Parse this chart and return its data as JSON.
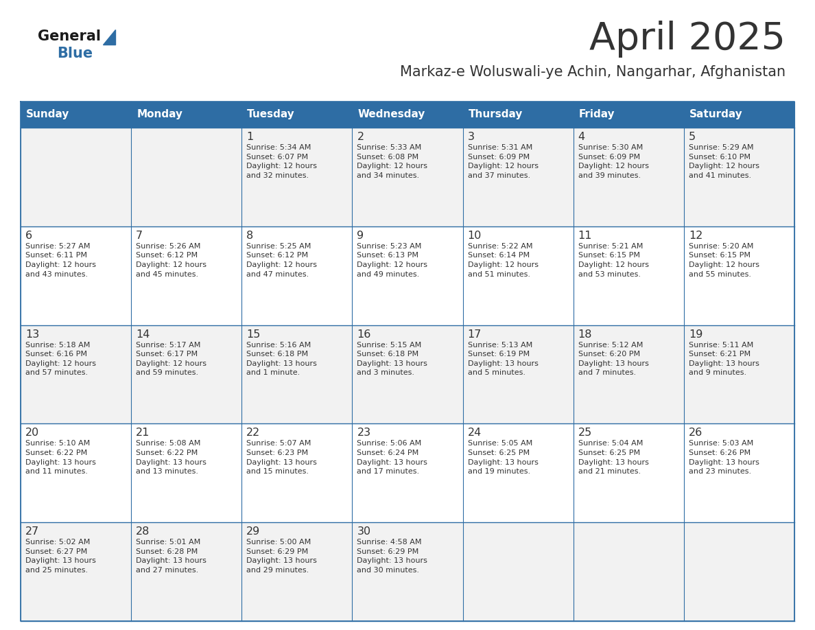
{
  "title": "April 2025",
  "subtitle": "Markaz-e Woluswali-ye Achin, Nangarhar, Afghanistan",
  "header_bg_color": "#2E6DA4",
  "header_text_color": "#FFFFFF",
  "cell_bg_even": "#F2F2F2",
  "cell_bg_odd": "#FFFFFF",
  "text_color": "#333333",
  "grid_color": "#2E6DA4",
  "days_of_week": [
    "Sunday",
    "Monday",
    "Tuesday",
    "Wednesday",
    "Thursday",
    "Friday",
    "Saturday"
  ],
  "weeks": [
    [
      {
        "day": "",
        "info": ""
      },
      {
        "day": "",
        "info": ""
      },
      {
        "day": "1",
        "info": "Sunrise: 5:34 AM\nSunset: 6:07 PM\nDaylight: 12 hours\nand 32 minutes."
      },
      {
        "day": "2",
        "info": "Sunrise: 5:33 AM\nSunset: 6:08 PM\nDaylight: 12 hours\nand 34 minutes."
      },
      {
        "day": "3",
        "info": "Sunrise: 5:31 AM\nSunset: 6:09 PM\nDaylight: 12 hours\nand 37 minutes."
      },
      {
        "day": "4",
        "info": "Sunrise: 5:30 AM\nSunset: 6:09 PM\nDaylight: 12 hours\nand 39 minutes."
      },
      {
        "day": "5",
        "info": "Sunrise: 5:29 AM\nSunset: 6:10 PM\nDaylight: 12 hours\nand 41 minutes."
      }
    ],
    [
      {
        "day": "6",
        "info": "Sunrise: 5:27 AM\nSunset: 6:11 PM\nDaylight: 12 hours\nand 43 minutes."
      },
      {
        "day": "7",
        "info": "Sunrise: 5:26 AM\nSunset: 6:12 PM\nDaylight: 12 hours\nand 45 minutes."
      },
      {
        "day": "8",
        "info": "Sunrise: 5:25 AM\nSunset: 6:12 PM\nDaylight: 12 hours\nand 47 minutes."
      },
      {
        "day": "9",
        "info": "Sunrise: 5:23 AM\nSunset: 6:13 PM\nDaylight: 12 hours\nand 49 minutes."
      },
      {
        "day": "10",
        "info": "Sunrise: 5:22 AM\nSunset: 6:14 PM\nDaylight: 12 hours\nand 51 minutes."
      },
      {
        "day": "11",
        "info": "Sunrise: 5:21 AM\nSunset: 6:15 PM\nDaylight: 12 hours\nand 53 minutes."
      },
      {
        "day": "12",
        "info": "Sunrise: 5:20 AM\nSunset: 6:15 PM\nDaylight: 12 hours\nand 55 minutes."
      }
    ],
    [
      {
        "day": "13",
        "info": "Sunrise: 5:18 AM\nSunset: 6:16 PM\nDaylight: 12 hours\nand 57 minutes."
      },
      {
        "day": "14",
        "info": "Sunrise: 5:17 AM\nSunset: 6:17 PM\nDaylight: 12 hours\nand 59 minutes."
      },
      {
        "day": "15",
        "info": "Sunrise: 5:16 AM\nSunset: 6:18 PM\nDaylight: 13 hours\nand 1 minute."
      },
      {
        "day": "16",
        "info": "Sunrise: 5:15 AM\nSunset: 6:18 PM\nDaylight: 13 hours\nand 3 minutes."
      },
      {
        "day": "17",
        "info": "Sunrise: 5:13 AM\nSunset: 6:19 PM\nDaylight: 13 hours\nand 5 minutes."
      },
      {
        "day": "18",
        "info": "Sunrise: 5:12 AM\nSunset: 6:20 PM\nDaylight: 13 hours\nand 7 minutes."
      },
      {
        "day": "19",
        "info": "Sunrise: 5:11 AM\nSunset: 6:21 PM\nDaylight: 13 hours\nand 9 minutes."
      }
    ],
    [
      {
        "day": "20",
        "info": "Sunrise: 5:10 AM\nSunset: 6:22 PM\nDaylight: 13 hours\nand 11 minutes."
      },
      {
        "day": "21",
        "info": "Sunrise: 5:08 AM\nSunset: 6:22 PM\nDaylight: 13 hours\nand 13 minutes."
      },
      {
        "day": "22",
        "info": "Sunrise: 5:07 AM\nSunset: 6:23 PM\nDaylight: 13 hours\nand 15 minutes."
      },
      {
        "day": "23",
        "info": "Sunrise: 5:06 AM\nSunset: 6:24 PM\nDaylight: 13 hours\nand 17 minutes."
      },
      {
        "day": "24",
        "info": "Sunrise: 5:05 AM\nSunset: 6:25 PM\nDaylight: 13 hours\nand 19 minutes."
      },
      {
        "day": "25",
        "info": "Sunrise: 5:04 AM\nSunset: 6:25 PM\nDaylight: 13 hours\nand 21 minutes."
      },
      {
        "day": "26",
        "info": "Sunrise: 5:03 AM\nSunset: 6:26 PM\nDaylight: 13 hours\nand 23 minutes."
      }
    ],
    [
      {
        "day": "27",
        "info": "Sunrise: 5:02 AM\nSunset: 6:27 PM\nDaylight: 13 hours\nand 25 minutes."
      },
      {
        "day": "28",
        "info": "Sunrise: 5:01 AM\nSunset: 6:28 PM\nDaylight: 13 hours\nand 27 minutes."
      },
      {
        "day": "29",
        "info": "Sunrise: 5:00 AM\nSunset: 6:29 PM\nDaylight: 13 hours\nand 29 minutes."
      },
      {
        "day": "30",
        "info": "Sunrise: 4:58 AM\nSunset: 6:29 PM\nDaylight: 13 hours\nand 30 minutes."
      },
      {
        "day": "",
        "info": ""
      },
      {
        "day": "",
        "info": ""
      },
      {
        "day": "",
        "info": ""
      }
    ]
  ],
  "logo_triangle_color": "#2E6DA4",
  "logo_black": "#1a1a1a"
}
